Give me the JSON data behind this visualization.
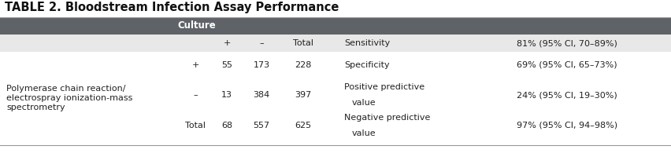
{
  "title": "TABLE 2. Bloodstream Infection Assay Performance",
  "title_fontsize": 10.5,
  "title_fontweight": "bold",
  "bg_color": "#ffffff",
  "header_bg": "#5f6368",
  "header_text": "Culture",
  "header_text_color": "#ffffff",
  "subheader_bg": "#e8e8e8",
  "row_bg_white": "#ffffff",
  "font_family": "DejaVu Sans",
  "table_font_size": 8.0,
  "col_plus": "+",
  "col_minus": "–",
  "col_total": "Total",
  "col_sensitivity": "Sensitivity",
  "col_sens_val": "81% (95% CI, 70–89%)",
  "row1_sign": "+",
  "row1_plus": "55",
  "row1_minus": "173",
  "row1_total": "228",
  "row1_stat": "Specificity",
  "row1_val": "69% (95% CI, 65–73%)",
  "row2_sign": "–",
  "row2_plus": "13",
  "row2_minus": "384",
  "row2_total": "397",
  "row2_stat1": "Positive predictive",
  "row2_stat2": "value",
  "row2_val": "24% (95% CI, 19–30%)",
  "row3_sign": "Total",
  "row3_plus": "68",
  "row3_minus": "557",
  "row3_total": "625",
  "row3_stat1": "Negative predictive",
  "row3_stat2": "value",
  "row3_val": "97% (95% CI, 94–98%)",
  "label_line1": "Polymerase chain reaction/",
  "label_line2": "electrospray ionization-mass",
  "label_line3": "spectrometry"
}
